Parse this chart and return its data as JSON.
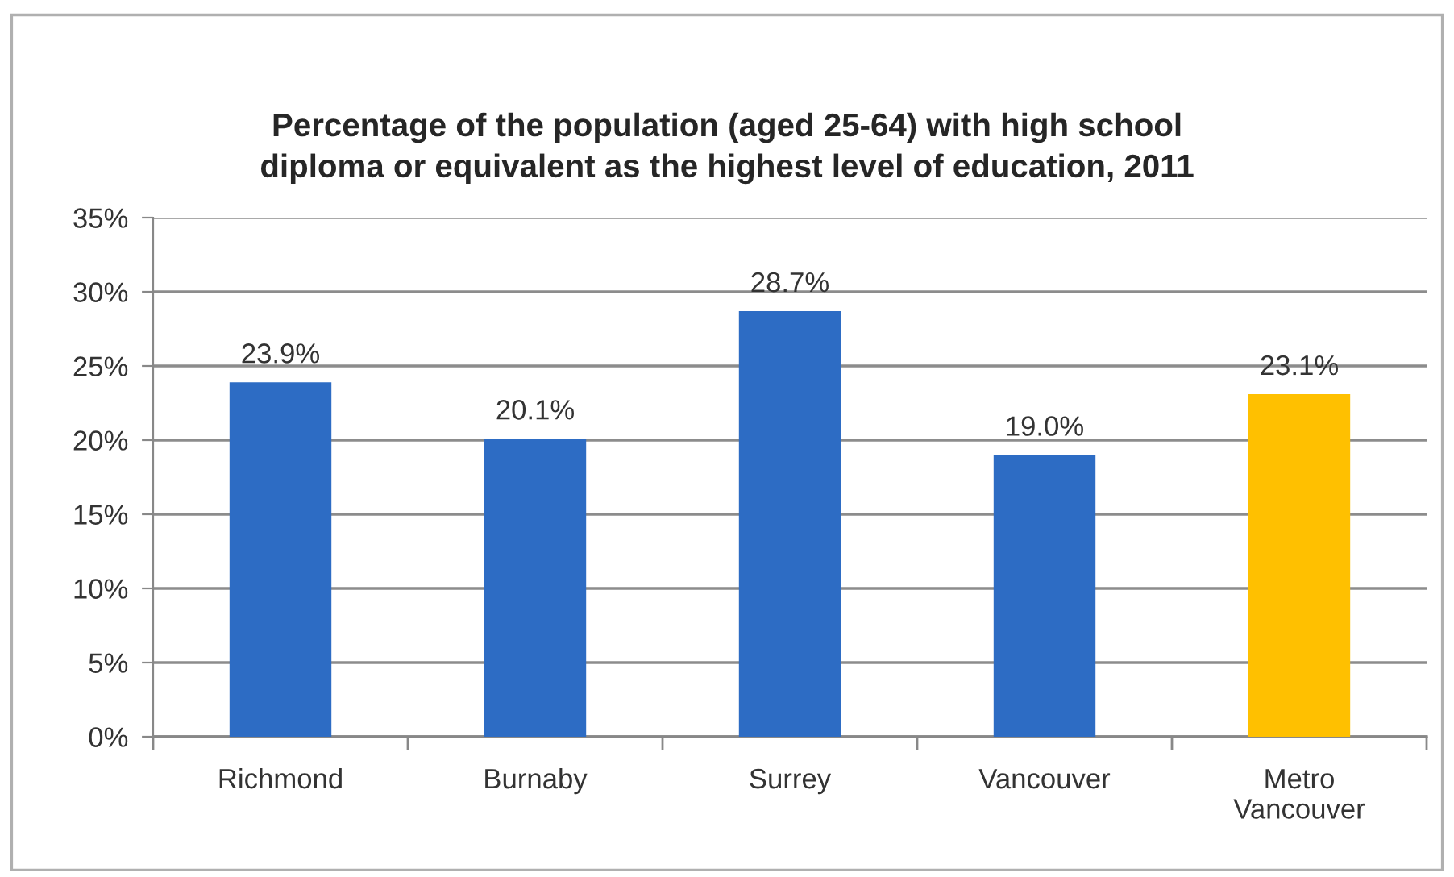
{
  "chart_data": {
    "type": "bar",
    "title": "Percentage of the population (aged 25-64) with high school\ndiploma or equivalent as the highest level of education, 2011",
    "categories": [
      "Richmond",
      "Burnaby",
      "Surrey",
      "Vancouver",
      "Metro\nVancouver"
    ],
    "values": [
      23.9,
      20.1,
      28.7,
      19.0,
      23.1
    ],
    "colors": [
      "#2d6cc4",
      "#2d6cc4",
      "#2d6cc4",
      "#2d6cc4",
      "#ffc000"
    ],
    "value_labels": [
      "23.9%",
      "20.1%",
      "28.7%",
      "19.0%",
      "23.1%"
    ],
    "ylim": [
      0,
      35
    ],
    "yticks": [
      {
        "value": 0,
        "label": "0%"
      },
      {
        "value": 5,
        "label": "5%"
      },
      {
        "value": 10,
        "label": "10%"
      },
      {
        "value": 15,
        "label": "15%"
      },
      {
        "value": 20,
        "label": "20%"
      },
      {
        "value": 25,
        "label": "25%"
      },
      {
        "value": 30,
        "label": "30%"
      },
      {
        "value": 35,
        "label": "35%"
      }
    ],
    "grid": "y",
    "legend": false
  }
}
